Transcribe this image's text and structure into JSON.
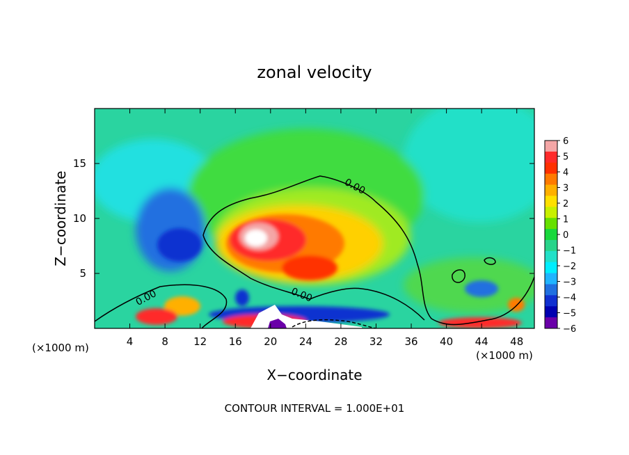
{
  "chart_data": {
    "type": "heatmap",
    "title": "zonal velocity",
    "xlabel": "X−coordinate",
    "ylabel": "Z−coordinate",
    "x_unit_left": "(×1000 m)",
    "x_unit_right": "(×1000 m)",
    "footer": "CONTOUR INTERVAL = 1.000E+01",
    "xlim": [
      0,
      50
    ],
    "ylim": [
      0,
      20
    ],
    "xticks": [
      4,
      8,
      12,
      16,
      20,
      24,
      28,
      32,
      36,
      40,
      44,
      48
    ],
    "yticks": [
      5,
      10,
      15
    ],
    "contour_labels": [
      "0.00",
      "0.00",
      "0.00"
    ],
    "colorbar": {
      "ticks": [
        "6",
        "5",
        "4",
        "3",
        "2",
        "1",
        "0",
        "−1",
        "−2",
        "−3",
        "−4",
        "−5",
        "−6"
      ],
      "colors": [
        "#f4a6a6",
        "#ff2a2a",
        "#ff3000",
        "#ff7a00",
        "#ffb000",
        "#ffe000",
        "#c8f000",
        "#66e000",
        "#18d83c",
        "#28d48a",
        "#22e0c8",
        "#00eeff",
        "#20b4ff",
        "#2070e0",
        "#1030d0",
        "#0000b0",
        "#6a00a8"
      ]
    },
    "features": [
      {
        "kind": "positive_max",
        "x": 19,
        "z": 8.5,
        "value": 6
      },
      {
        "kind": "negative_min",
        "x": 9,
        "z": 8,
        "value": -5
      },
      {
        "kind": "negative_min",
        "x": 21,
        "z": 0.5,
        "value": -6
      },
      {
        "kind": "zero_contour",
        "label_x": 29,
        "label_z": 13
      },
      {
        "kind": "zero_contour",
        "label_x": 6,
        "label_z": 2.5
      },
      {
        "kind": "zero_contour",
        "label_x": 23,
        "label_z": 3
      }
    ]
  }
}
